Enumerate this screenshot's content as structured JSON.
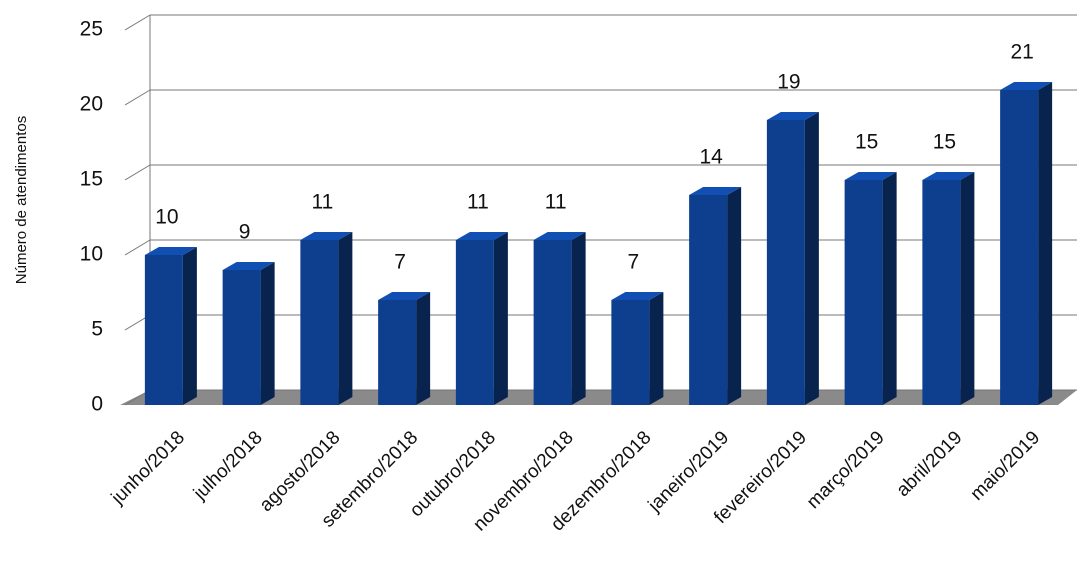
{
  "chart_data": {
    "type": "bar3d",
    "y_label": "Número de atendimentos",
    "categories": [
      "junho/2018",
      "julho/2018",
      "agosto/2018",
      "setembro/2018",
      "outubro/2018",
      "novembro/2018",
      "dezembro/2018",
      "janeiro/2019",
      "fevereiro/2019",
      "março/2019",
      "abril/2019",
      "maio/2019"
    ],
    "values": [
      10,
      9,
      11,
      7,
      11,
      11,
      7,
      14,
      19,
      15,
      15,
      21
    ],
    "color": "#0e3f8e",
    "ylim": [
      0,
      25
    ],
    "yticks": [
      0,
      5,
      10,
      15,
      20,
      25
    ],
    "grid": true
  }
}
